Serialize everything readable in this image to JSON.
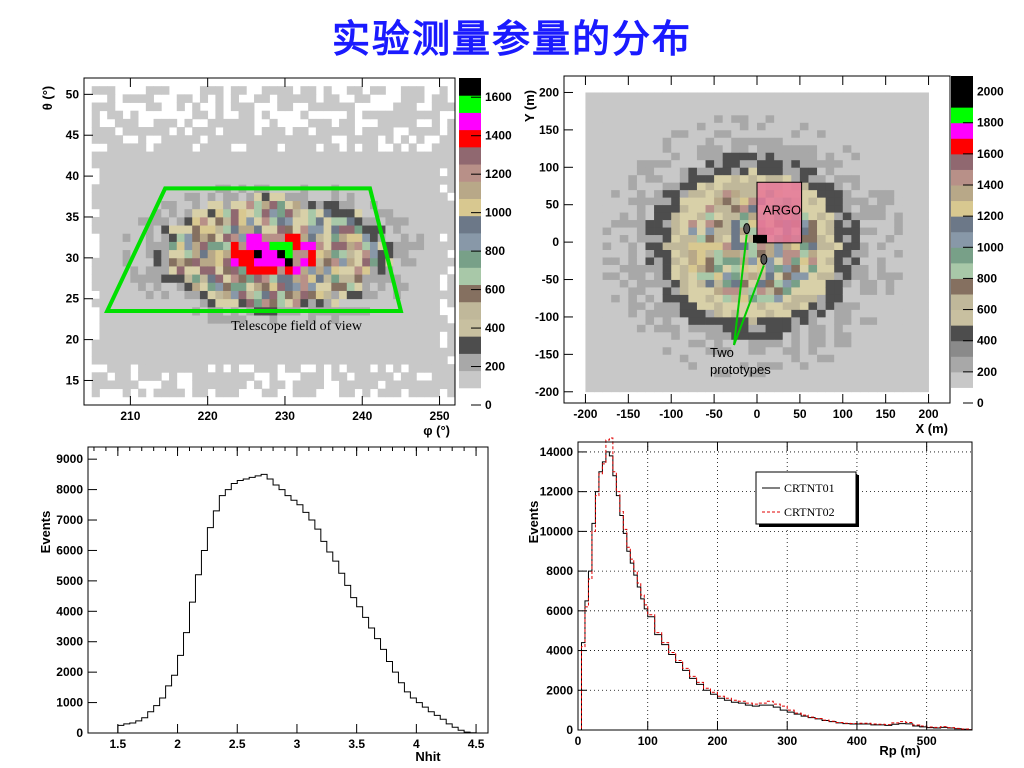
{
  "page": {
    "title": "实验测量参量的分布"
  },
  "chart_data": [
    {
      "id": "theta_phi",
      "type": "heatmap",
      "xlabel": "φ (°)",
      "ylabel": "θ (°)",
      "xlim": [
        204,
        252
      ],
      "ylim": [
        12,
        52
      ],
      "xticks": [
        "210",
        "220",
        "230",
        "240",
        "250"
      ],
      "xtick_values": [
        210,
        220,
        230,
        240,
        250
      ],
      "yticks": [
        "15",
        "20",
        "25",
        "30",
        "35",
        "40",
        "45",
        "50"
      ],
      "ytick_values": [
        15,
        20,
        25,
        30,
        35,
        40,
        45,
        50
      ],
      "colorbar_ticks": [
        "0",
        "200",
        "400",
        "600",
        "800",
        "1000",
        "1200",
        "1400",
        "1600"
      ],
      "colorbar_values": [
        0,
        200,
        400,
        600,
        800,
        1000,
        1200,
        1400,
        1600
      ],
      "colorbar_max": 1700,
      "palette": [
        "#ffffff",
        "#c8c8c8",
        "#a8a8a8",
        "#4d4d4d",
        "#d8d0a8",
        "#c0b89a",
        "#857060",
        "#a8c8a8",
        "#78a088",
        "#8898a8",
        "#6c7888",
        "#d8c890",
        "#b8a888",
        "#b89088",
        "#906870",
        "#ff0000",
        "#ff00ff",
        "#00ff00",
        "#000000"
      ],
      "annotation": "Telescope field of view",
      "fov_polygon": [
        [
          214.5,
          38.5
        ],
        [
          241,
          38.5
        ],
        [
          245,
          23.5
        ],
        [
          207,
          23.5
        ]
      ],
      "fov_color": "#00e000"
    },
    {
      "id": "core_xy",
      "type": "heatmap",
      "xlabel": "X (m)",
      "ylabel": "Y (m)",
      "xlim": [
        -225,
        225
      ],
      "ylim": [
        -215,
        222
      ],
      "xticks": [
        "-200",
        "-150",
        "-100",
        "-50",
        "0",
        "50",
        "100",
        "150",
        "200"
      ],
      "xtick_values": [
        -200,
        -150,
        -100,
        -50,
        0,
        50,
        100,
        150,
        200
      ],
      "yticks": [
        "-200",
        "-150",
        "-100",
        "-50",
        "0",
        "50",
        "100",
        "150",
        "200"
      ],
      "ytick_values": [
        -200,
        -150,
        -100,
        -50,
        0,
        50,
        100,
        150,
        200
      ],
      "colorbar_ticks": [
        "0",
        "200",
        "400",
        "600",
        "800",
        "1000",
        "1200",
        "1400",
        "1600",
        "1800",
        "2000"
      ],
      "colorbar_values": [
        0,
        200,
        400,
        600,
        800,
        1000,
        1200,
        1400,
        1600,
        1800,
        2000
      ],
      "colorbar_max": 2100,
      "argo_label": "ARGO",
      "argo_box": [
        0,
        -1,
        52,
        80
      ],
      "prototype_label_line1": "Two",
      "prototype_label_line2": "prototypes",
      "prototypes": [
        [
          -12,
          18
        ],
        [
          8,
          -23
        ]
      ]
    },
    {
      "id": "nhit",
      "type": "line",
      "xlabel": "Nhit",
      "ylabel": "Events",
      "xlim": [
        1.25,
        4.6
      ],
      "ylim": [
        0,
        9400
      ],
      "xticks": [
        "1.5",
        "2",
        "2.5",
        "3",
        "3.5",
        "4",
        "4.5"
      ],
      "xtick_values": [
        1.5,
        2,
        2.5,
        3,
        3.5,
        4,
        4.5
      ],
      "yticks": [
        "0",
        "1000",
        "2000",
        "3000",
        "4000",
        "5000",
        "6000",
        "7000",
        "8000",
        "9000"
      ],
      "ytick_values": [
        0,
        1000,
        2000,
        3000,
        4000,
        5000,
        6000,
        7000,
        8000,
        9000
      ],
      "x": [
        1.4,
        1.5,
        1.55,
        1.6,
        1.65,
        1.7,
        1.75,
        1.8,
        1.85,
        1.9,
        1.95,
        2.0,
        2.05,
        2.1,
        2.15,
        2.2,
        2.25,
        2.3,
        2.35,
        2.4,
        2.45,
        2.5,
        2.55,
        2.6,
        2.65,
        2.7,
        2.75,
        2.8,
        2.85,
        2.9,
        2.95,
        3.0,
        3.05,
        3.1,
        3.15,
        3.2,
        3.25,
        3.3,
        3.35,
        3.4,
        3.45,
        3.5,
        3.55,
        3.6,
        3.65,
        3.7,
        3.75,
        3.8,
        3.85,
        3.9,
        3.95,
        4.0,
        4.05,
        4.1,
        4.15,
        4.2,
        4.25,
        4.3,
        4.35,
        4.4,
        4.45,
        4.5
      ],
      "y": [
        0,
        250,
        300,
        330,
        400,
        500,
        700,
        900,
        1150,
        1550,
        1900,
        2550,
        3300,
        4300,
        5200,
        6000,
        6750,
        7300,
        7800,
        8000,
        8200,
        8300,
        8350,
        8400,
        8450,
        8500,
        8350,
        8150,
        8000,
        7800,
        7650,
        7500,
        7250,
        7000,
        6700,
        6300,
        5950,
        5650,
        5250,
        4850,
        4450,
        4150,
        3800,
        3450,
        3100,
        2750,
        2350,
        2000,
        1650,
        1350,
        1150,
        1000,
        850,
        700,
        580,
        450,
        300,
        190,
        90,
        30,
        10,
        0
      ]
    },
    {
      "id": "rp",
      "type": "line",
      "xlabel": "Rp (m)",
      "ylabel": "Events",
      "xlim": [
        0,
        565
      ],
      "ylim": [
        0,
        14500
      ],
      "xticks": [
        "0",
        "100",
        "200",
        "300",
        "400",
        "500"
      ],
      "xtick_values": [
        0,
        100,
        200,
        300,
        400,
        500
      ],
      "yticks": [
        "0",
        "2000",
        "4000",
        "6000",
        "8000",
        "10000",
        "12000",
        "14000"
      ],
      "ytick_values": [
        0,
        2000,
        4000,
        6000,
        8000,
        10000,
        12000,
        14000
      ],
      "series": [
        {
          "name": "CRTNT01",
          "color": "#000000",
          "x": [
            0,
            5,
            10,
            15,
            20,
            25,
            30,
            35,
            40,
            45,
            50,
            55,
            60,
            65,
            70,
            75,
            80,
            85,
            90,
            95,
            100,
            110,
            120,
            130,
            140,
            150,
            160,
            170,
            180,
            190,
            200,
            210,
            220,
            230,
            240,
            250,
            260,
            270,
            280,
            290,
            300,
            310,
            320,
            330,
            340,
            350,
            360,
            370,
            380,
            390,
            400,
            410,
            420,
            430,
            440,
            450,
            460,
            470,
            480,
            490,
            500,
            510,
            520,
            530,
            540,
            550,
            560
          ],
          "y": [
            0,
            4400,
            6500,
            8000,
            10400,
            12000,
            13000,
            13500,
            14000,
            13800,
            12800,
            11800,
            10800,
            9900,
            9000,
            8400,
            7800,
            7200,
            6600,
            6100,
            5700,
            4800,
            4300,
            3800,
            3400,
            3000,
            2600,
            2300,
            2000,
            1800,
            1600,
            1500,
            1400,
            1350,
            1250,
            1200,
            1250,
            1250,
            1150,
            1000,
            900,
            800,
            700,
            620,
            560,
            480,
            420,
            360,
            320,
            300,
            300,
            300,
            260,
            260,
            230,
            290,
            320,
            310,
            200,
            160,
            120,
            100,
            130,
            100,
            60,
            40,
            20
          ]
        },
        {
          "name": "CRTNT02",
          "color": "#e00000",
          "x": [
            0,
            5,
            10,
            15,
            20,
            25,
            30,
            35,
            40,
            45,
            50,
            55,
            60,
            65,
            70,
            75,
            80,
            85,
            90,
            95,
            100,
            110,
            120,
            130,
            140,
            150,
            160,
            170,
            180,
            190,
            200,
            210,
            220,
            230,
            240,
            250,
            260,
            270,
            280,
            290,
            300,
            310,
            320,
            330,
            340,
            350,
            360,
            370,
            380,
            390,
            400,
            410,
            420,
            430,
            440,
            450,
            460,
            470,
            480,
            490,
            500,
            510,
            520,
            530,
            540,
            550,
            560
          ],
          "y": [
            0,
            4200,
            6200,
            7600,
            10000,
            11800,
            12900,
            13400,
            14600,
            14700,
            13000,
            12000,
            11000,
            10100,
            9200,
            8600,
            8000,
            7400,
            6800,
            6300,
            5800,
            4900,
            4400,
            3900,
            3500,
            3100,
            2700,
            2400,
            2100,
            1900,
            1700,
            1600,
            1500,
            1450,
            1350,
            1300,
            1350,
            1450,
            1300,
            1200,
            1000,
            850,
            750,
            650,
            580,
            500,
            440,
            380,
            340,
            330,
            340,
            340,
            300,
            290,
            270,
            360,
            420,
            380,
            250,
            200,
            150,
            130,
            170,
            120,
            80,
            50,
            20
          ]
        }
      ]
    }
  ]
}
